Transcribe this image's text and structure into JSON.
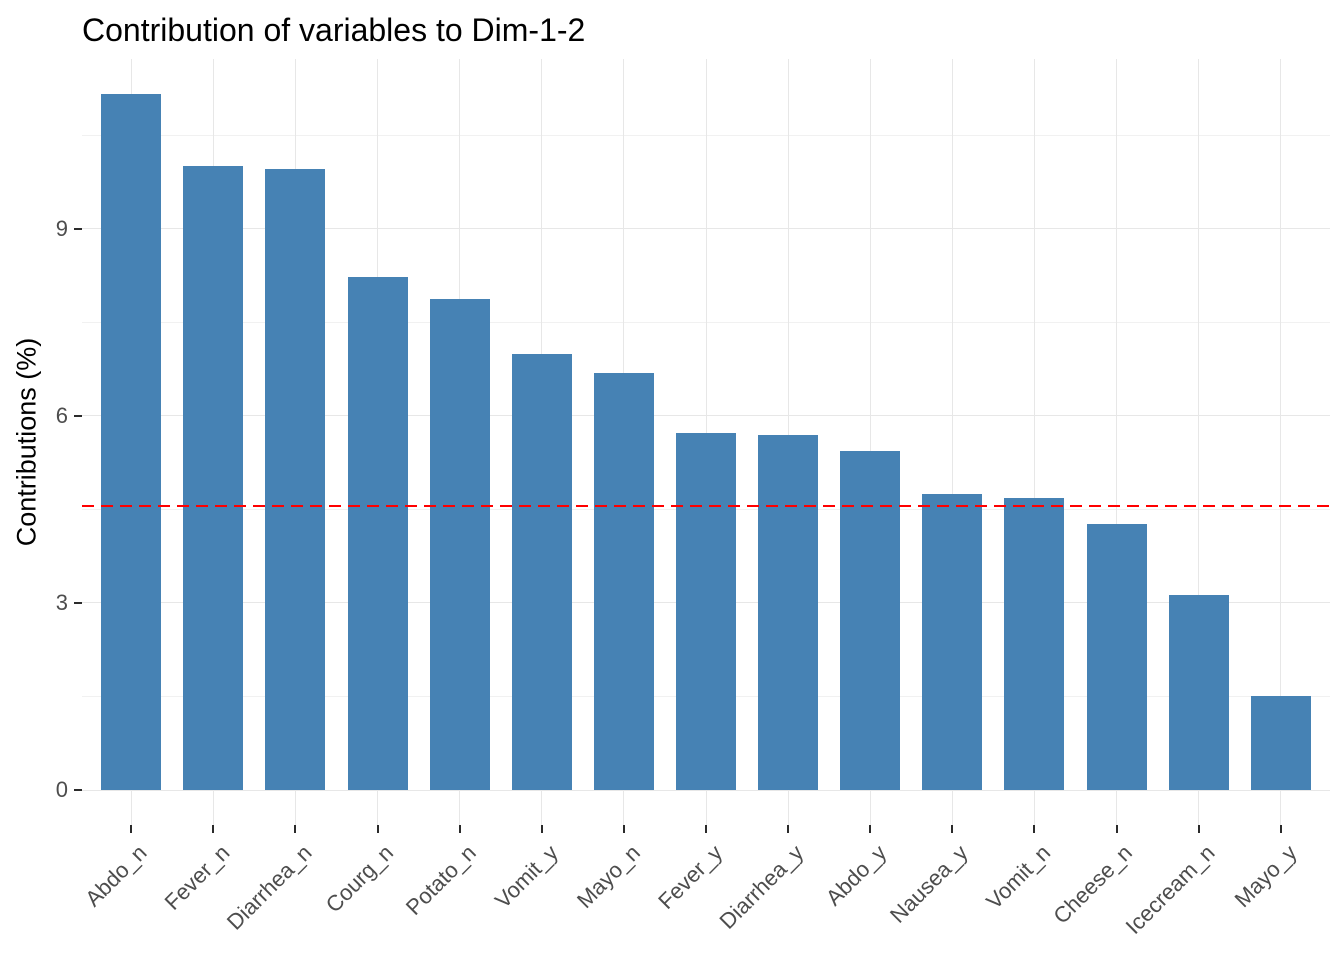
{
  "title": "Contribution of variables to Dim-1-2",
  "y_axis": {
    "title": "Contributions (%)"
  },
  "chart_data": {
    "type": "bar",
    "title": "Contribution of variables to Dim-1-2",
    "xlabel": "",
    "ylabel": "Contributions (%)",
    "categories": [
      "Abdo_n",
      "Fever_n",
      "Diarrhea_n",
      "Courg_n",
      "Potato_n",
      "Vomit_y",
      "Mayo_n",
      "Fever_y",
      "Diarrhea_y",
      "Abdo_y",
      "Nausea_y",
      "Vomit_n",
      "Cheese_n",
      "Icecream_n",
      "Mayo_y"
    ],
    "values": [
      11.16,
      10.0,
      9.96,
      8.22,
      7.87,
      6.99,
      6.68,
      5.72,
      5.7,
      5.43,
      4.74,
      4.68,
      4.26,
      3.12,
      1.51
    ],
    "y_ticks": [
      0,
      3,
      6,
      9
    ],
    "y_minor_ticks": [
      1.5,
      4.5,
      7.5,
      10.5
    ],
    "ylim": [
      -0.56,
      11.72
    ],
    "grid": "on",
    "legend": "none",
    "bar_color": "#4682B4",
    "reference_line": {
      "value": 4.55,
      "color": "#FF0000",
      "style": "dashed"
    }
  },
  "colors": {
    "background": "#FFFFFF",
    "bar": "#4682B4",
    "grid_major": "#E7E7E7",
    "grid_minor": "#F1F1F1",
    "tick_label": "#4D4D4D",
    "tick_mark": "#2B2B2B",
    "title": "#000000",
    "reference_line": "#FF0000"
  }
}
